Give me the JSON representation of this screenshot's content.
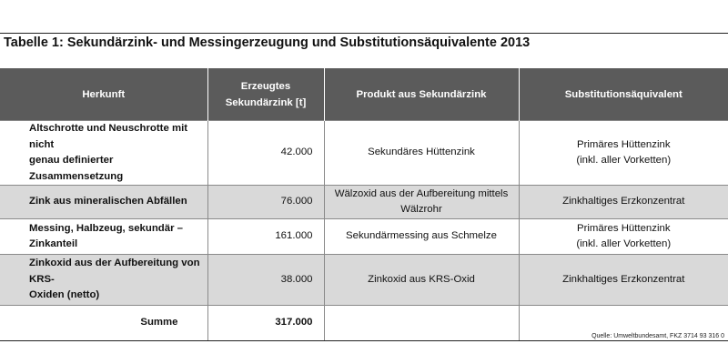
{
  "title": "Tabelle 1: Sekundärzink- und Messingerzeugung und Substitutionsäquivalente 2013",
  "headers": {
    "herkunft": "Herkunft",
    "erzeugt_line1": "Erzeugtes",
    "erzeugt_line2": "Sekundärzink [t]",
    "produkt": "Produkt aus  Sekundärzink",
    "substitution": "Substitutionsäquivalent"
  },
  "rows": [
    {
      "herkunft_l1": "Altschrotte und Neuschrotte mit nicht",
      "herkunft_l2": "genau definierter Zusammensetzung",
      "menge": "42.000",
      "produkt_l1": "Sekundäres Hüttenzink",
      "produkt_l2": "",
      "subst_l1": "Primäres Hüttenzink",
      "subst_l2": "(inkl. aller Vorketten)"
    },
    {
      "herkunft_l1": "Zink aus mineralischen Abfällen",
      "herkunft_l2": "",
      "menge": "76.000",
      "produkt_l1": "Wälzoxid aus der Aufbereitung mittels",
      "produkt_l2": "Wälzrohr",
      "subst_l1": "Zinkhaltiges Erzkonzentrat",
      "subst_l2": ""
    },
    {
      "herkunft_l1": "Messing, Halbzeug, sekundär –",
      "herkunft_l2": "Zinkanteil",
      "menge": "161.000",
      "produkt_l1": "Sekundärmessing aus Schmelze",
      "produkt_l2": "",
      "subst_l1": "Primäres Hüttenzink",
      "subst_l2": "(inkl. aller Vorketten)"
    },
    {
      "herkunft_l1": "Zinkoxid aus der Aufbereitung von KRS-",
      "herkunft_l2": "Oxiden (netto)",
      "menge": "38.000",
      "produkt_l1": "Zinkoxid aus KRS-Oxid",
      "produkt_l2": "",
      "subst_l1": "Zinkhaltiges Erzkonzentrat",
      "subst_l2": ""
    }
  ],
  "summe": {
    "label": "Summe",
    "value": "317.000"
  },
  "source": "Quelle: Umweltbundesamt, FKZ  3714 93 316 0",
  "colors": {
    "header_bg": "#5b5b5b",
    "shade": "#d9d9d9",
    "rule": "#222222"
  }
}
